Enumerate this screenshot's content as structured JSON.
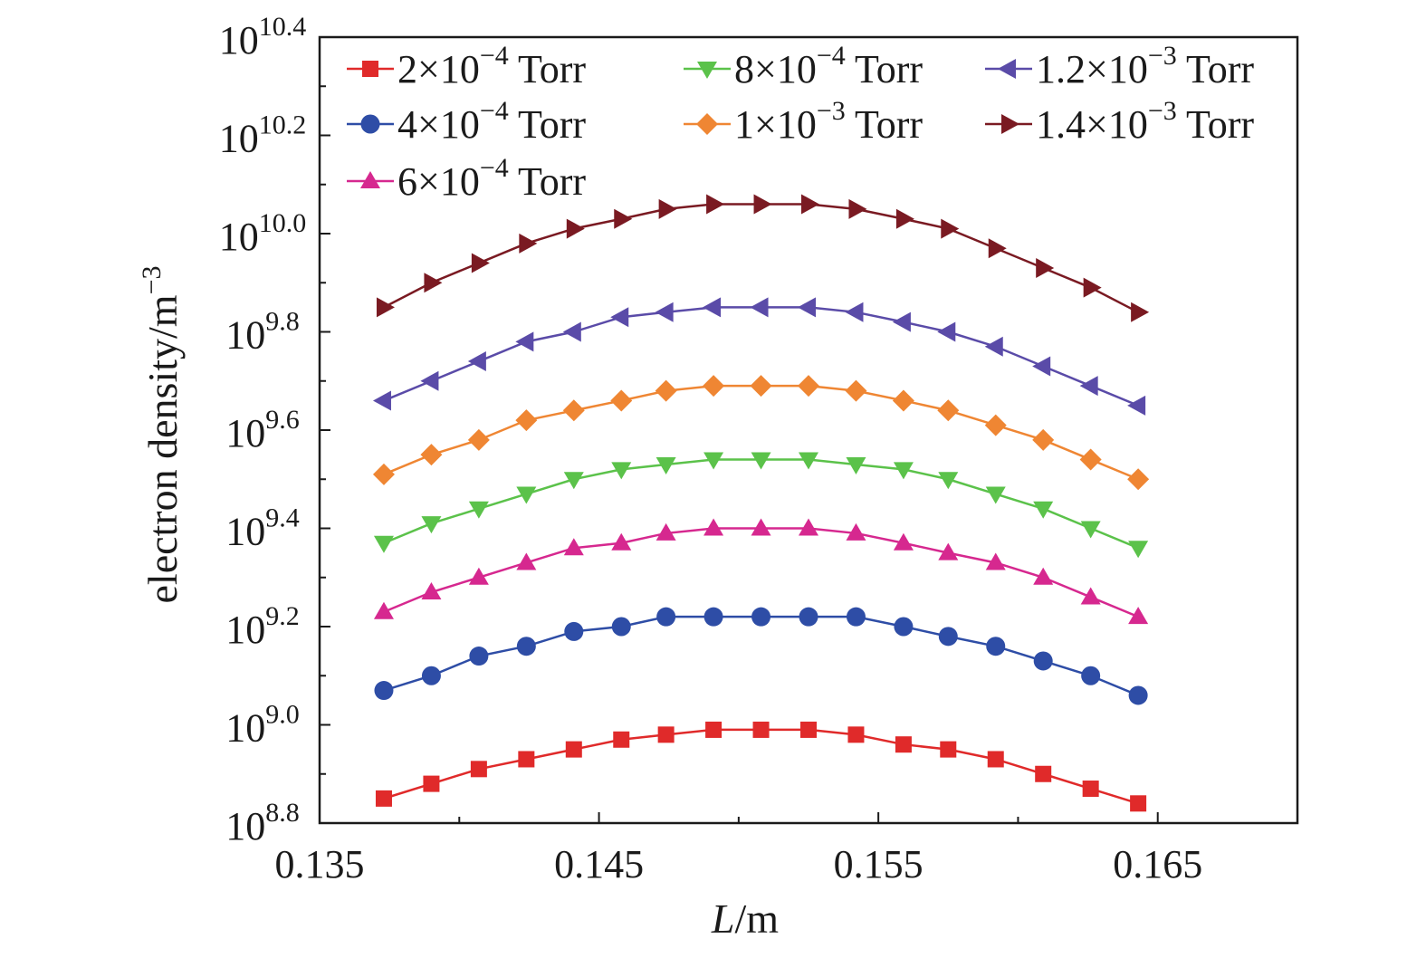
{
  "chart_data": {
    "type": "line",
    "title": "",
    "xlabel_italic": "L",
    "xlabel_rest": "/m",
    "ylabel_main": "electron density/m",
    "ylabel_sup": "−3",
    "xlim": [
      0.135,
      0.17
    ],
    "ylim_log10": [
      8.8,
      10.4
    ],
    "y_scale": "log10",
    "x_ticks": [
      0.135,
      0.145,
      0.155,
      0.165
    ],
    "x_tick_labels": [
      "0.135",
      "0.145",
      "0.155",
      "0.165"
    ],
    "y_ticks": [
      8.8,
      9.0,
      9.2,
      9.4,
      9.6,
      9.8,
      10.0,
      10.2,
      10.4
    ],
    "y_tick_base": "10",
    "y_tick_exponents": [
      "8.8",
      "9.0",
      "9.2",
      "9.4",
      "9.6",
      "9.8",
      "10.0",
      "10.2",
      "10.4"
    ],
    "grid": false,
    "legend_position": "top",
    "x": [
      0.1373,
      0.139,
      0.1407,
      0.1424,
      0.1441,
      0.1458,
      0.1474,
      0.1491,
      0.1508,
      0.1525,
      0.1542,
      0.1559,
      0.1575,
      0.1592,
      0.1609,
      0.1626,
      0.1643
    ],
    "series": [
      {
        "name": "2×10⁻⁴ Torr",
        "legend_base": "2×10",
        "legend_exp": "−4",
        "legend_unit": "Torr",
        "color": "#e02a2a",
        "marker": "square",
        "values_log10": [
          8.85,
          8.88,
          8.91,
          8.93,
          8.95,
          8.97,
          8.98,
          8.99,
          8.99,
          8.99,
          8.98,
          8.96,
          8.95,
          8.93,
          8.9,
          8.87,
          8.84
        ]
      },
      {
        "name": "4×10⁻⁴ Torr",
        "legend_base": "4×10",
        "legend_exp": "−4",
        "legend_unit": "Torr",
        "color": "#2e4da6",
        "marker": "circle",
        "values_log10": [
          9.07,
          9.1,
          9.14,
          9.16,
          9.19,
          9.2,
          9.22,
          9.22,
          9.22,
          9.22,
          9.22,
          9.2,
          9.18,
          9.16,
          9.13,
          9.1,
          9.06
        ]
      },
      {
        "name": "6×10⁻⁴ Torr",
        "legend_base": "6×10",
        "legend_exp": "−4",
        "legend_unit": "Torr",
        "color": "#d6288f",
        "marker": "triangle-up",
        "values_log10": [
          9.23,
          9.27,
          9.3,
          9.33,
          9.36,
          9.37,
          9.39,
          9.4,
          9.4,
          9.4,
          9.39,
          9.37,
          9.35,
          9.33,
          9.3,
          9.26,
          9.22
        ]
      },
      {
        "name": "8×10⁻⁴ Torr",
        "legend_base": "8×10",
        "legend_exp": "−4",
        "legend_unit": "Torr",
        "color": "#5bc24a",
        "marker": "triangle-down",
        "values_log10": [
          9.37,
          9.41,
          9.44,
          9.47,
          9.5,
          9.52,
          9.53,
          9.54,
          9.54,
          9.54,
          9.53,
          9.52,
          9.5,
          9.47,
          9.44,
          9.4,
          9.36
        ]
      },
      {
        "name": "1×10⁻³ Torr",
        "legend_base": "1×10",
        "legend_exp": "−3",
        "legend_unit": "Torr",
        "color": "#ef8633",
        "marker": "diamond",
        "values_log10": [
          9.51,
          9.55,
          9.58,
          9.62,
          9.64,
          9.66,
          9.68,
          9.69,
          9.69,
          9.69,
          9.68,
          9.66,
          9.64,
          9.61,
          9.58,
          9.54,
          9.5
        ]
      },
      {
        "name": "1.2×10⁻³ Torr",
        "legend_base": "1.2×10",
        "legend_exp": "−3",
        "legend_unit": "Torr",
        "color": "#5a4ba8",
        "marker": "triangle-left",
        "values_log10": [
          9.66,
          9.7,
          9.74,
          9.78,
          9.8,
          9.83,
          9.84,
          9.85,
          9.85,
          9.85,
          9.84,
          9.82,
          9.8,
          9.77,
          9.73,
          9.69,
          9.65
        ]
      },
      {
        "name": "1.4×10⁻³ Torr",
        "legend_base": "1.4×10",
        "legend_exp": "−3",
        "legend_unit": "Torr",
        "color": "#7a1a22",
        "marker": "triangle-right",
        "values_log10": [
          9.85,
          9.9,
          9.94,
          9.98,
          10.01,
          10.03,
          10.05,
          10.06,
          10.06,
          10.06,
          10.05,
          10.03,
          10.01,
          9.97,
          9.93,
          9.89,
          9.84
        ]
      }
    ]
  }
}
